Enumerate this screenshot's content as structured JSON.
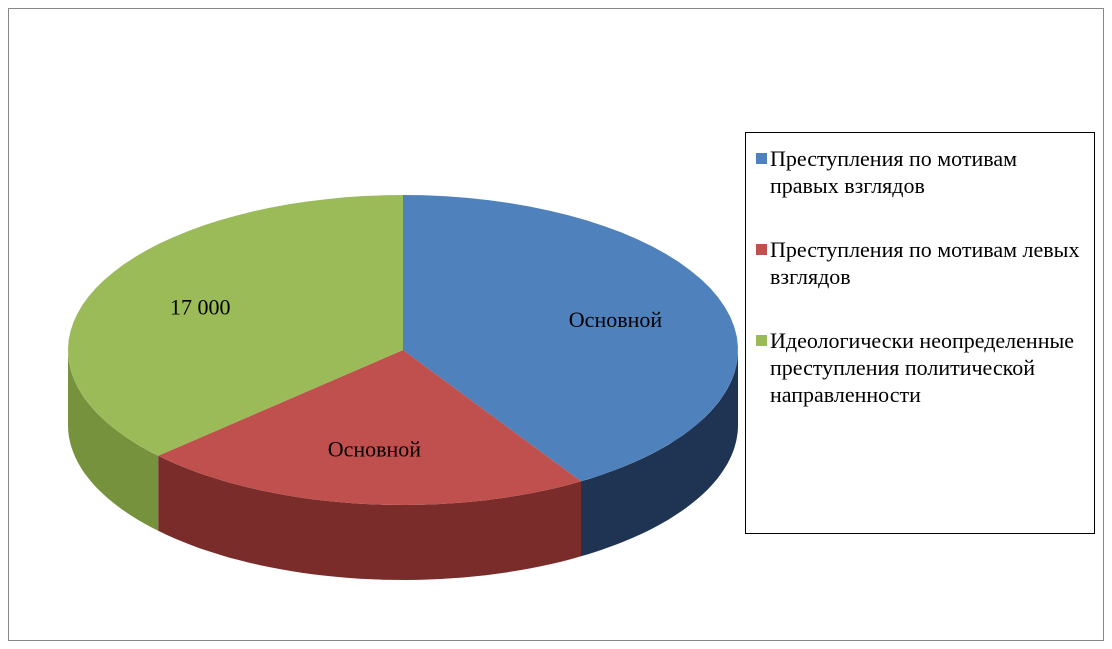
{
  "chart_data": {
    "type": "pie",
    "categories": [
      "Преступления по мотивам правых взглядов",
      "Преступления по мотивам левых взглядов",
      "Идеологически неопределенные преступления политической направленности"
    ],
    "values": [
      18900,
      10100,
      17000
    ],
    "value_labels": [
      "Основной",
      "Основной",
      "17 000"
    ],
    "colors": [
      "#4f81bd",
      "#c0504d",
      "#9bbb59"
    ],
    "side_colors": [
      "#1f3452",
      "#7a2c2a",
      "#76923c"
    ],
    "legend": "right"
  }
}
